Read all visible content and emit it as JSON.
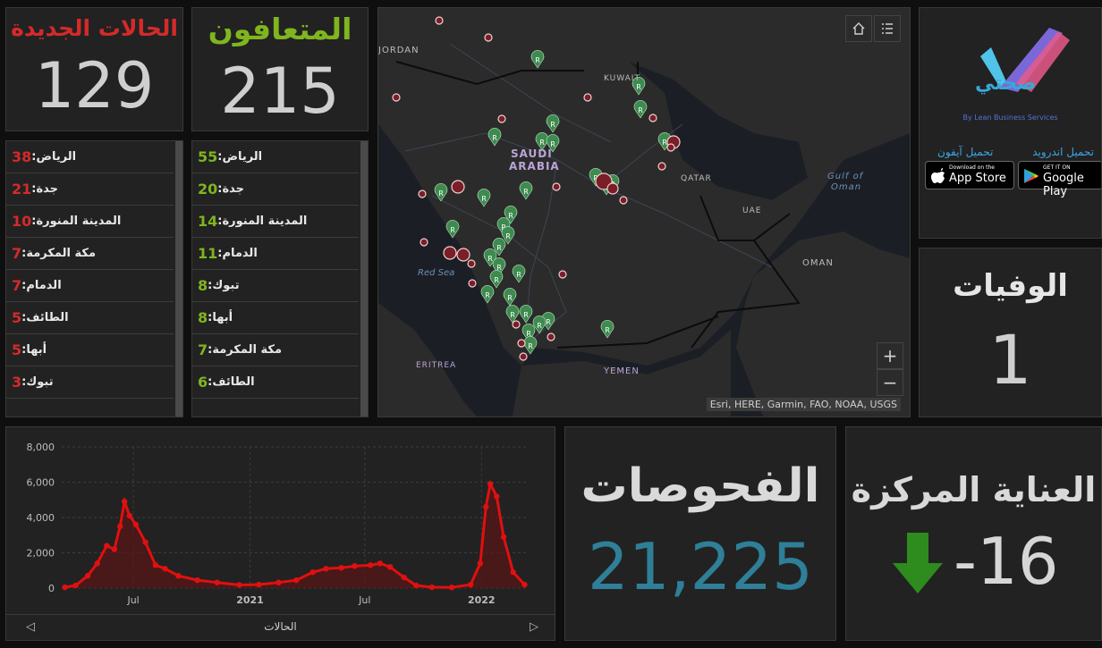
{
  "new_cases": {
    "title": "الحالات الجديدة",
    "value": "129",
    "color": "#d42a2a"
  },
  "recovered": {
    "title": "المتعافون",
    "value": "215",
    "color": "#7fb51e"
  },
  "new_cases_list": [
    {
      "city": "الرياض:",
      "count": "38"
    },
    {
      "city": "جدة:",
      "count": "21"
    },
    {
      "city": "المدينة المنورة:",
      "count": "10"
    },
    {
      "city": "مكة المكرمة:",
      "count": "7"
    },
    {
      "city": "الدمام:",
      "count": "7"
    },
    {
      "city": "الطائف:",
      "count": "5"
    },
    {
      "city": "أبها:",
      "count": "5"
    },
    {
      "city": "تبوك:",
      "count": "3"
    }
  ],
  "recovered_list": [
    {
      "city": "الرياض:",
      "count": "55"
    },
    {
      "city": "جدة:",
      "count": "20"
    },
    {
      "city": "المدينة المنورة:",
      "count": "14"
    },
    {
      "city": "الدمام:",
      "count": "11"
    },
    {
      "city": "تبوك:",
      "count": "8"
    },
    {
      "city": "أبها:",
      "count": "8"
    },
    {
      "city": "مكة المكرمة:",
      "count": "7"
    },
    {
      "city": "الطائف:",
      "count": "6"
    }
  ],
  "map": {
    "labels": {
      "jordan": "JORDAN",
      "kuwait": "KUWAIT",
      "saudi1": "SAUDI",
      "saudi2": "ARABIA",
      "qatar": "QATAR",
      "gulf1": "Gulf of",
      "gulf2": "Oman",
      "uae": "UAE",
      "oman": "OMAN",
      "redsea": "Red Sea",
      "eritrea": "ERITREA",
      "yemen": "YEMEN"
    },
    "attribution": "Esri, HERE, Garmin, FAO, NOAA, USGS",
    "zoom_in": "+",
    "zoom_out": "−",
    "marker_letter": "R"
  },
  "app": {
    "logo_text": "صحتي",
    "byline": "By Lean Business Services",
    "android_label": "تحميل اندرويد",
    "iphone_label": "تحميل آيفون",
    "google_small": "GET IT ON",
    "google_big": "Google Play",
    "apple_small": "Download on the",
    "apple_big": "App Store"
  },
  "deaths": {
    "title": "الوفيات",
    "value": "1"
  },
  "tests": {
    "title": "الفحوصات",
    "value": "21,225",
    "color": "#2f7f98"
  },
  "icu": {
    "title": "العناية المركزة",
    "value": "-16",
    "arrow_color": "#2e8b1e"
  },
  "chart_footer": "الحالات",
  "chart_data": {
    "type": "area",
    "title": "",
    "xlabel": "الحالات",
    "ylabel": "",
    "ylim": [
      0,
      8000
    ],
    "yticks": [
      "0",
      "2,000",
      "4,000",
      "6,000",
      "8,000"
    ],
    "xticks": [
      "Jul",
      "2021",
      "Jul",
      "2022"
    ],
    "color": "#e01010",
    "series": [
      {
        "values": [
          {
            "x": "2020-03-15",
            "y": 50
          },
          {
            "x": "2020-04-01",
            "y": 150
          },
          {
            "x": "2020-04-20",
            "y": 700
          },
          {
            "x": "2020-05-05",
            "y": 1400
          },
          {
            "x": "2020-05-20",
            "y": 2400
          },
          {
            "x": "2020-06-01",
            "y": 2200
          },
          {
            "x": "2020-06-10",
            "y": 3500
          },
          {
            "x": "2020-06-17",
            "y": 4900
          },
          {
            "x": "2020-06-25",
            "y": 4100
          },
          {
            "x": "2020-07-05",
            "y": 3600
          },
          {
            "x": "2020-07-20",
            "y": 2600
          },
          {
            "x": "2020-08-05",
            "y": 1300
          },
          {
            "x": "2020-08-20",
            "y": 1100
          },
          {
            "x": "2020-09-10",
            "y": 700
          },
          {
            "x": "2020-10-10",
            "y": 450
          },
          {
            "x": "2020-11-10",
            "y": 320
          },
          {
            "x": "2020-12-15",
            "y": 180
          },
          {
            "x": "2021-01-15",
            "y": 200
          },
          {
            "x": "2021-02-15",
            "y": 320
          },
          {
            "x": "2021-03-15",
            "y": 450
          },
          {
            "x": "2021-04-10",
            "y": 900
          },
          {
            "x": "2021-05-01",
            "y": 1100
          },
          {
            "x": "2021-05-25",
            "y": 1150
          },
          {
            "x": "2021-06-15",
            "y": 1250
          },
          {
            "x": "2021-07-10",
            "y": 1300
          },
          {
            "x": "2021-07-25",
            "y": 1400
          },
          {
            "x": "2021-08-10",
            "y": 1200
          },
          {
            "x": "2021-09-01",
            "y": 600
          },
          {
            "x": "2021-09-20",
            "y": 150
          },
          {
            "x": "2021-10-15",
            "y": 50
          },
          {
            "x": "2021-11-15",
            "y": 40
          },
          {
            "x": "2021-12-15",
            "y": 200
          },
          {
            "x": "2021-12-30",
            "y": 1400
          },
          {
            "x": "2022-01-08",
            "y": 4600
          },
          {
            "x": "2022-01-15",
            "y": 5900
          },
          {
            "x": "2022-01-25",
            "y": 5200
          },
          {
            "x": "2022-02-05",
            "y": 2900
          },
          {
            "x": "2022-02-20",
            "y": 900
          },
          {
            "x": "2022-03-10",
            "y": 200
          }
        ]
      }
    ]
  }
}
